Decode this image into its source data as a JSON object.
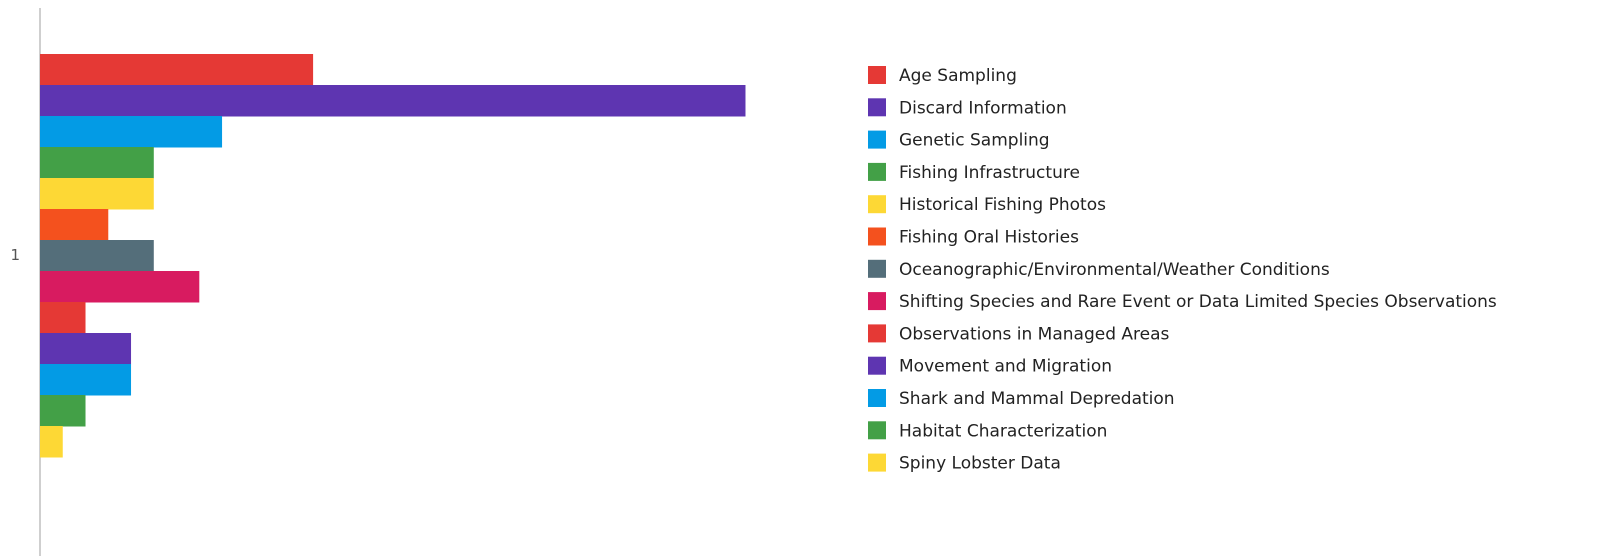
{
  "chart_data": {
    "type": "bar",
    "orientation": "horizontal",
    "categories": [
      "1"
    ],
    "series": [
      {
        "name": "Age Sampling",
        "values": [
          12
        ],
        "color": "#e53935"
      },
      {
        "name": "Discard Information",
        "values": [
          31
        ],
        "color": "#5e35b1"
      },
      {
        "name": "Genetic Sampling",
        "values": [
          8
        ],
        "color": "#039be5"
      },
      {
        "name": "Fishing Infrastructure",
        "values": [
          5
        ],
        "color": "#43a047"
      },
      {
        "name": "Historical Fishing Photos",
        "values": [
          5
        ],
        "color": "#fdd835"
      },
      {
        "name": "Fishing Oral Histories",
        "values": [
          3
        ],
        "color": "#f4511e"
      },
      {
        "name": "Oceanographic/Environmental/Weather Conditions",
        "values": [
          5
        ],
        "color": "#546e7a"
      },
      {
        "name": "Shifting Species and Rare Event or Data Limited Species Observations",
        "values": [
          7
        ],
        "color": "#d81b60"
      },
      {
        "name": "Observations in Managed Areas",
        "values": [
          2
        ],
        "color": "#e53935"
      },
      {
        "name": "Movement and Migration",
        "values": [
          4
        ],
        "color": "#5e35b1"
      },
      {
        "name": "Shark and Mammal Depredation",
        "values": [
          4
        ],
        "color": "#039be5"
      },
      {
        "name": "Habitat Characterization",
        "values": [
          2
        ],
        "color": "#43a047"
      },
      {
        "name": "Spiny Lobster Data",
        "values": [
          1
        ],
        "color": "#fdd835"
      }
    ],
    "title": "",
    "xlabel": "",
    "ylabel": "",
    "xlim": [
      0,
      66
    ],
    "grid": false,
    "legend_position": "right"
  }
}
